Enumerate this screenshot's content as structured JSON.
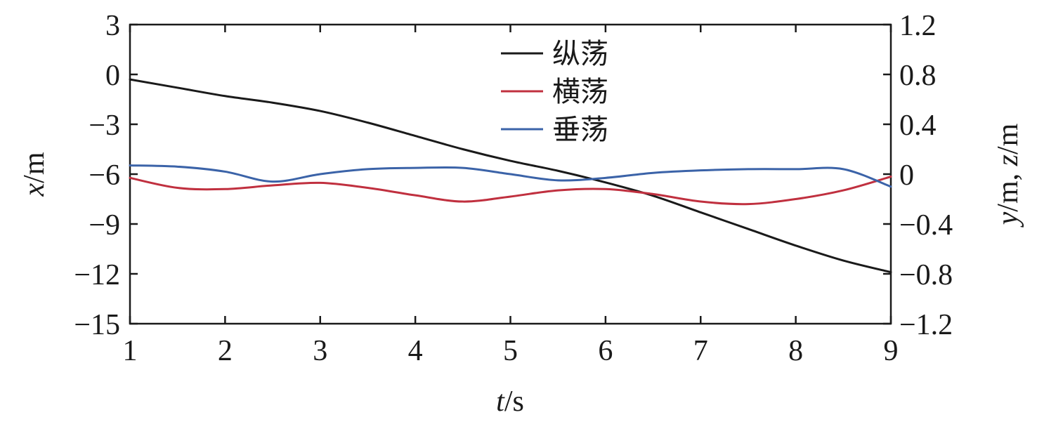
{
  "chart_data": {
    "type": "line",
    "title": "",
    "xlabel": {
      "italic": "t",
      "unit": "/s"
    },
    "ylabel_left": {
      "italic": "x",
      "unit": "/m"
    },
    "ylabel_right": {
      "italic1": "y",
      "mid": "/m, ",
      "italic2": "z",
      "unit": "/m"
    },
    "xlim": [
      1,
      9
    ],
    "ylim_left": [
      -15,
      3
    ],
    "ylim_right": [
      -1.2,
      1.2
    ],
    "x_ticks": [
      1,
      2,
      3,
      4,
      5,
      6,
      7,
      8,
      9
    ],
    "x_tick_labels": [
      "1",
      "2",
      "3",
      "4",
      "5",
      "6",
      "7",
      "8",
      "9"
    ],
    "y_left_ticks": [
      3,
      0,
      -3,
      -6,
      -9,
      -12,
      -15
    ],
    "y_left_tick_labels": [
      "3",
      "0",
      "−3",
      "−6",
      "−9",
      "−12",
      "−15"
    ],
    "y_right_ticks": [
      1.2,
      0.8,
      0.4,
      0,
      -0.4,
      -0.8,
      -1.2
    ],
    "y_right_tick_labels": [
      "1.2",
      "0.8",
      "0.4",
      "0",
      "−0.4",
      "−0.8",
      "−1.2"
    ],
    "grid": false,
    "legend_position": "top-center",
    "series": [
      {
        "name": "纵荡",
        "axis": "left",
        "color": "#1a1a1a",
        "x": [
          1,
          1.5,
          2,
          2.5,
          3,
          3.5,
          4,
          4.5,
          5,
          5.5,
          6,
          6.5,
          7,
          7.5,
          8,
          8.5,
          9
        ],
        "y": [
          -0.3,
          -0.8,
          -1.3,
          -1.7,
          -2.2,
          -2.9,
          -3.7,
          -4.5,
          -5.2,
          -5.8,
          -6.5,
          -7.3,
          -8.3,
          -9.3,
          -10.3,
          -11.2,
          -11.9
        ]
      },
      {
        "name": "横荡",
        "axis": "right",
        "color": "#c0303f",
        "x": [
          1,
          1.5,
          2,
          2.5,
          3,
          3.5,
          4,
          4.5,
          5,
          5.5,
          6,
          6.5,
          7,
          7.5,
          8,
          8.5,
          9
        ],
        "y": [
          -0.03,
          -0.11,
          -0.12,
          -0.09,
          -0.07,
          -0.11,
          -0.17,
          -0.22,
          -0.18,
          -0.13,
          -0.12,
          -0.16,
          -0.22,
          -0.24,
          -0.2,
          -0.13,
          -0.02
        ]
      },
      {
        "name": "垂荡",
        "axis": "right",
        "color": "#3b63a8",
        "x": [
          1,
          1.5,
          2,
          2.5,
          3,
          3.5,
          4,
          4.5,
          5,
          5.5,
          6,
          6.5,
          7,
          7.5,
          8,
          8.5,
          9
        ],
        "y": [
          0.07,
          0.06,
          0.02,
          -0.06,
          0.0,
          0.04,
          0.05,
          0.05,
          0.0,
          -0.05,
          -0.03,
          0.01,
          0.03,
          0.04,
          0.04,
          0.04,
          -0.1
        ]
      }
    ]
  }
}
